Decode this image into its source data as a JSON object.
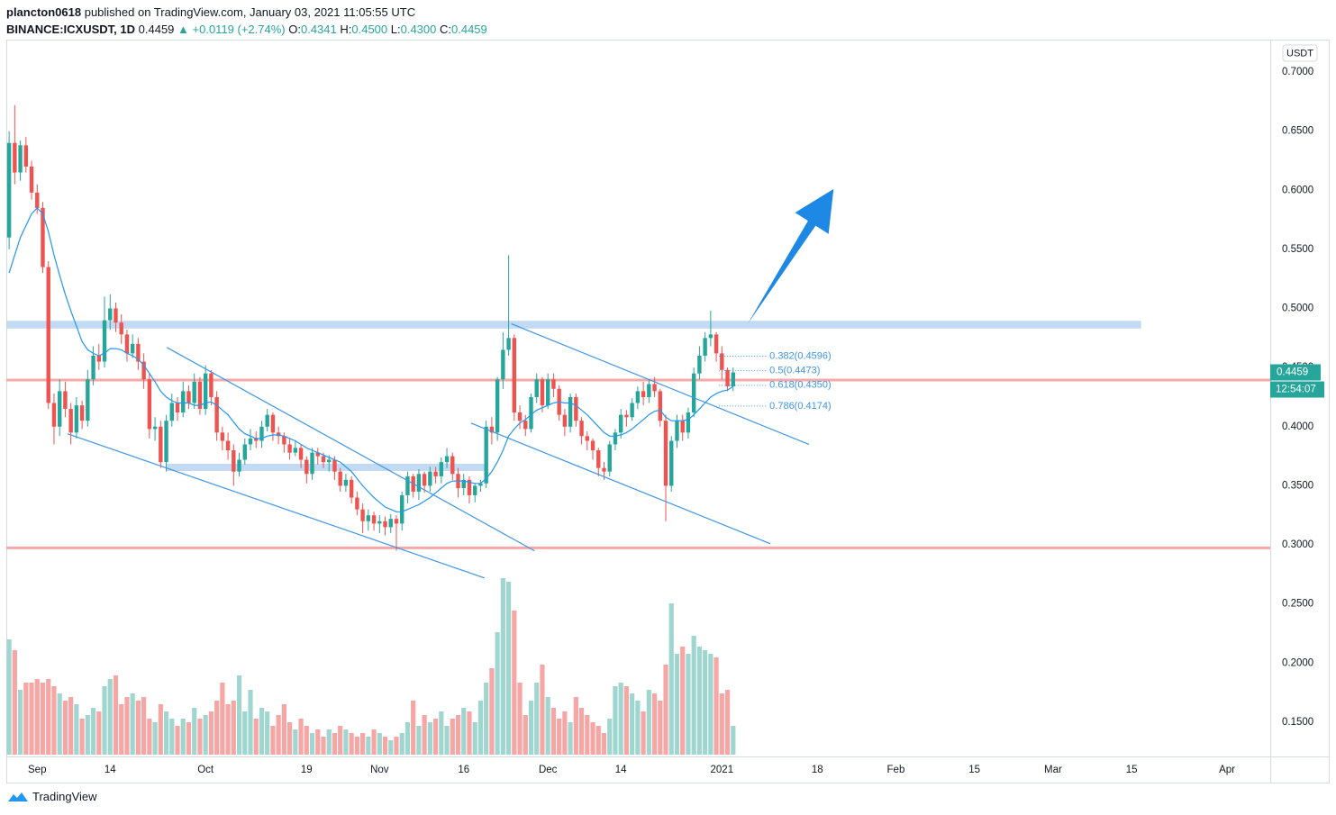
{
  "header": {
    "author": "plancton0618",
    "published": "published on TradingView.com, January 03, 2021 11:05:55 UTC",
    "symbol": "BINANCE:ICXUSDT, 1D",
    "last": "0.4459",
    "change": "▲ +0.0119 (+2.74%)",
    "ohlc": [
      {
        "key": "O:",
        "value": "0.4341"
      },
      {
        "key": "H:",
        "value": "0.4500"
      },
      {
        "key": "L:",
        "value": "0.4300"
      },
      {
        "key": "C:",
        "value": "0.4459"
      }
    ]
  },
  "footer": {
    "brand": "TradingView"
  },
  "chart_data": {
    "type": "candlestick",
    "up_color": "#26a69a",
    "down_color": "#ef5350",
    "up_volume_color": "#9fd6d0",
    "down_volume_color": "#f6a6a4",
    "grid": false,
    "currency": "USDT",
    "last_price": {
      "value": 0.4459,
      "label": "0.4459"
    },
    "countdown": "12:54:07",
    "xlim": [
      -0.5,
      224.7
    ],
    "ylim": [
      0.121,
      0.7274
    ],
    "xticks": [
      {
        "value": 5,
        "label": "Sep"
      },
      {
        "value": 18,
        "label": "14"
      },
      {
        "value": 35,
        "label": "Oct"
      },
      {
        "value": 53,
        "label": "19"
      },
      {
        "value": 66,
        "label": "Nov"
      },
      {
        "value": 81,
        "label": "16"
      },
      {
        "value": 96,
        "label": "Dec"
      },
      {
        "value": 109,
        "label": "14"
      },
      {
        "value": 127,
        "label": "2021"
      },
      {
        "value": 144,
        "label": "18"
      },
      {
        "value": 158,
        "label": "Feb"
      },
      {
        "value": 172,
        "label": "15"
      },
      {
        "value": 186,
        "label": "Mar"
      },
      {
        "value": 200,
        "label": "15"
      },
      {
        "value": 217,
        "label": "Apr"
      }
    ],
    "yticks": [
      {
        "value": 0.7,
        "label": "0.7000"
      },
      {
        "value": 0.65,
        "label": "0.6500"
      },
      {
        "value": 0.6,
        "label": "0.6000"
      },
      {
        "value": 0.55,
        "label": "0.5500"
      },
      {
        "value": 0.5,
        "label": "0.5000"
      },
      {
        "value": 0.45,
        "label": "0.4500"
      },
      {
        "value": 0.4,
        "label": "0.4000"
      },
      {
        "value": 0.35,
        "label": "0.3500"
      },
      {
        "value": 0.3,
        "label": "0.3000"
      },
      {
        "value": 0.25,
        "label": "0.2500"
      },
      {
        "value": 0.2,
        "label": "0.2000"
      },
      {
        "value": 0.15,
        "label": "0.1500"
      }
    ],
    "open": [
      0.56,
      0.64,
      0.615,
      0.638,
      0.62,
      0.598,
      0.585,
      0.535,
      0.42,
      0.4,
      0.43,
      0.415,
      0.395,
      0.418,
      0.405,
      0.44,
      0.46,
      0.455,
      0.49,
      0.5,
      0.488,
      0.478,
      0.462,
      0.47,
      0.455,
      0.44,
      0.398,
      0.4,
      0.37,
      0.405,
      0.42,
      0.412,
      0.43,
      0.42,
      0.438,
      0.415,
      0.445,
      0.425,
      0.395,
      0.388,
      0.38,
      0.362,
      0.372,
      0.385,
      0.39,
      0.388,
      0.4,
      0.41,
      0.395,
      0.392,
      0.385,
      0.378,
      0.382,
      0.372,
      0.36,
      0.378,
      0.375,
      0.37,
      0.372,
      0.362,
      0.35,
      0.355,
      0.34,
      0.33,
      0.32,
      0.325,
      0.318,
      0.32,
      0.315,
      0.322,
      0.318,
      0.342,
      0.358,
      0.345,
      0.36,
      0.35,
      0.362,
      0.358,
      0.37,
      0.375,
      0.36,
      0.348,
      0.355,
      0.342,
      0.35,
      0.352,
      0.4,
      0.395,
      0.44,
      0.465,
      0.475,
      0.412,
      0.405,
      0.398,
      0.425,
      0.44,
      0.418,
      0.44,
      0.432,
      0.41,
      0.4,
      0.425,
      0.405,
      0.392,
      0.388,
      0.38,
      0.365,
      0.362,
      0.385,
      0.395,
      0.41,
      0.408,
      0.42,
      0.43,
      0.425,
      0.436,
      0.43,
      0.405,
      0.35,
      0.388,
      0.405,
      0.395,
      0.412,
      0.445,
      0.46,
      0.475,
      0.478,
      0.462,
      0.448,
      0.4341
    ],
    "high": [
      0.65,
      0.672,
      0.642,
      0.645,
      0.625,
      0.605,
      0.59,
      0.54,
      0.428,
      0.44,
      0.438,
      0.42,
      0.425,
      0.422,
      0.448,
      0.468,
      0.47,
      0.51,
      0.512,
      0.505,
      0.495,
      0.482,
      0.478,
      0.475,
      0.462,
      0.445,
      0.408,
      0.405,
      0.41,
      0.428,
      0.425,
      0.438,
      0.435,
      0.445,
      0.442,
      0.452,
      0.448,
      0.43,
      0.4,
      0.395,
      0.385,
      0.378,
      0.39,
      0.398,
      0.396,
      0.405,
      0.415,
      0.412,
      0.4,
      0.395,
      0.39,
      0.388,
      0.385,
      0.375,
      0.382,
      0.382,
      0.378,
      0.376,
      0.375,
      0.365,
      0.36,
      0.358,
      0.345,
      0.335,
      0.33,
      0.328,
      0.325,
      0.324,
      0.326,
      0.325,
      0.345,
      0.362,
      0.36,
      0.364,
      0.362,
      0.366,
      0.366,
      0.374,
      0.382,
      0.378,
      0.365,
      0.36,
      0.358,
      0.352,
      0.355,
      0.405,
      0.408,
      0.442,
      0.48,
      0.545,
      0.478,
      0.418,
      0.41,
      0.428,
      0.445,
      0.442,
      0.445,
      0.445,
      0.435,
      0.415,
      0.428,
      0.428,
      0.408,
      0.396,
      0.39,
      0.382,
      0.37,
      0.388,
      0.398,
      0.415,
      0.414,
      0.424,
      0.434,
      0.438,
      0.44,
      0.442,
      0.432,
      0.41,
      0.392,
      0.41,
      0.41,
      0.416,
      0.45,
      0.468,
      0.48,
      0.498,
      0.48,
      0.468,
      0.45,
      0.45
    ],
    "low": [
      0.55,
      0.605,
      0.608,
      0.615,
      0.592,
      0.58,
      0.53,
      0.415,
      0.385,
      0.392,
      0.408,
      0.385,
      0.39,
      0.398,
      0.4,
      0.435,
      0.448,
      0.45,
      0.482,
      0.48,
      0.47,
      0.455,
      0.458,
      0.448,
      0.432,
      0.39,
      0.388,
      0.365,
      0.362,
      0.4,
      0.405,
      0.408,
      0.415,
      0.415,
      0.41,
      0.41,
      0.418,
      0.388,
      0.38,
      0.372,
      0.35,
      0.358,
      0.368,
      0.38,
      0.382,
      0.382,
      0.396,
      0.388,
      0.385,
      0.378,
      0.372,
      0.375,
      0.365,
      0.352,
      0.355,
      0.368,
      0.365,
      0.362,
      0.355,
      0.345,
      0.345,
      0.335,
      0.325,
      0.31,
      0.312,
      0.312,
      0.31,
      0.308,
      0.31,
      0.295,
      0.312,
      0.335,
      0.34,
      0.338,
      0.344,
      0.345,
      0.352,
      0.352,
      0.365,
      0.355,
      0.34,
      0.342,
      0.335,
      0.336,
      0.345,
      0.348,
      0.385,
      0.388,
      0.432,
      0.46,
      0.405,
      0.398,
      0.392,
      0.395,
      0.42,
      0.412,
      0.415,
      0.425,
      0.405,
      0.392,
      0.395,
      0.4,
      0.385,
      0.38,
      0.372,
      0.358,
      0.355,
      0.358,
      0.38,
      0.39,
      0.4,
      0.405,
      0.415,
      0.418,
      0.42,
      0.425,
      0.4,
      0.32,
      0.345,
      0.382,
      0.388,
      0.39,
      0.408,
      0.44,
      0.455,
      0.468,
      0.455,
      0.44,
      0.43,
      0.43
    ],
    "close": [
      0.64,
      0.615,
      0.638,
      0.62,
      0.598,
      0.585,
      0.535,
      0.42,
      0.4,
      0.43,
      0.415,
      0.395,
      0.418,
      0.405,
      0.44,
      0.46,
      0.455,
      0.49,
      0.5,
      0.488,
      0.478,
      0.462,
      0.47,
      0.455,
      0.44,
      0.398,
      0.4,
      0.37,
      0.405,
      0.42,
      0.412,
      0.43,
      0.42,
      0.438,
      0.415,
      0.445,
      0.425,
      0.395,
      0.388,
      0.38,
      0.362,
      0.372,
      0.385,
      0.39,
      0.388,
      0.4,
      0.41,
      0.395,
      0.392,
      0.385,
      0.378,
      0.382,
      0.372,
      0.36,
      0.378,
      0.375,
      0.37,
      0.372,
      0.362,
      0.35,
      0.355,
      0.34,
      0.33,
      0.32,
      0.325,
      0.318,
      0.32,
      0.315,
      0.322,
      0.318,
      0.342,
      0.358,
      0.345,
      0.36,
      0.35,
      0.362,
      0.358,
      0.37,
      0.375,
      0.36,
      0.348,
      0.355,
      0.342,
      0.35,
      0.352,
      0.4,
      0.395,
      0.44,
      0.465,
      0.475,
      0.412,
      0.405,
      0.398,
      0.425,
      0.44,
      0.418,
      0.44,
      0.432,
      0.41,
      0.4,
      0.425,
      0.405,
      0.392,
      0.388,
      0.38,
      0.365,
      0.362,
      0.385,
      0.395,
      0.41,
      0.408,
      0.42,
      0.43,
      0.425,
      0.436,
      0.43,
      0.405,
      0.35,
      0.388,
      0.405,
      0.395,
      0.412,
      0.445,
      0.46,
      0.475,
      0.478,
      0.462,
      0.448,
      0.4341,
      0.4459
    ],
    "volume": [
      64,
      58,
      36,
      40,
      40,
      42,
      40,
      42,
      38,
      34,
      30,
      32,
      28,
      20,
      22,
      26,
      24,
      38,
      42,
      44,
      28,
      32,
      34,
      30,
      32,
      20,
      18,
      28,
      24,
      20,
      16,
      20,
      18,
      26,
      20,
      22,
      24,
      30,
      40,
      28,
      30,
      44,
      24,
      36,
      20,
      26,
      24,
      16,
      22,
      28,
      18,
      14,
      20,
      16,
      12,
      14,
      10,
      14,
      12,
      16,
      14,
      12,
      10,
      12,
      10,
      14,
      12,
      10,
      8,
      10,
      12,
      18,
      30,
      16,
      22,
      18,
      20,
      24,
      16,
      20,
      22,
      26,
      24,
      18,
      30,
      40,
      48,
      68,
      98,
      96,
      80,
      40,
      22,
      30,
      40,
      50,
      32,
      26,
      20,
      24,
      18,
      32,
      26,
      22,
      18,
      16,
      12,
      20,
      38,
      40,
      38,
      34,
      30,
      24,
      36,
      34,
      30,
      50,
      84,
      56,
      60,
      56,
      66,
      60,
      58,
      56,
      54,
      34,
      36,
      16
    ],
    "ma": {
      "color": "#2196f3",
      "values": [
        0.53,
        0.545,
        0.56,
        0.57,
        0.58,
        0.585,
        0.58,
        0.565,
        0.545,
        0.528,
        0.512,
        0.498,
        0.485,
        0.472,
        0.465,
        0.462,
        0.46,
        0.462,
        0.466,
        0.466,
        0.465,
        0.462,
        0.46,
        0.457,
        0.452,
        0.445,
        0.438,
        0.43,
        0.425,
        0.422,
        0.42,
        0.42,
        0.42,
        0.418,
        0.418,
        0.42,
        0.421,
        0.418,
        0.414,
        0.41,
        0.404,
        0.398,
        0.394,
        0.392,
        0.39,
        0.39,
        0.392,
        0.393,
        0.393,
        0.392,
        0.39,
        0.388,
        0.385,
        0.382,
        0.38,
        0.378,
        0.376,
        0.374,
        0.372,
        0.37,
        0.366,
        0.362,
        0.356,
        0.35,
        0.345,
        0.34,
        0.336,
        0.332,
        0.33,
        0.328,
        0.328,
        0.33,
        0.332,
        0.334,
        0.337,
        0.34,
        0.344,
        0.348,
        0.352,
        0.354,
        0.354,
        0.354,
        0.353,
        0.352,
        0.352,
        0.356,
        0.362,
        0.37,
        0.38,
        0.392,
        0.398,
        0.403,
        0.406,
        0.41,
        0.414,
        0.416,
        0.418,
        0.42,
        0.421,
        0.42,
        0.42,
        0.418,
        0.414,
        0.41,
        0.405,
        0.4,
        0.395,
        0.392,
        0.392,
        0.393,
        0.395,
        0.398,
        0.402,
        0.406,
        0.41,
        0.413,
        0.414,
        0.408,
        0.405,
        0.405,
        0.405,
        0.406,
        0.41,
        0.415,
        0.42,
        0.425,
        0.428,
        0.43,
        0.431,
        0.434
      ]
    },
    "zones": [
      {
        "x": [
          -0.5,
          201.7
        ],
        "y": [
          0.483,
          0.4895
        ],
        "color": "#b7d3f2"
      },
      {
        "x": [
          28.1,
          85
        ],
        "y": [
          0.3625,
          0.3686
        ],
        "color": "#b7d3f2"
      }
    ],
    "levels": [
      {
        "y": 0.4394,
        "color": "#f7a8a8"
      },
      {
        "y": 0.2975,
        "color": "#f7a8a8"
      }
    ],
    "trendlines": [
      {
        "points": [
          [
            10.4,
            0.394
          ],
          [
            84.7,
            0.272
          ]
        ],
        "color": "#3d95e6"
      },
      {
        "points": [
          [
            28.1,
            0.467
          ],
          [
            93.6,
            0.295
          ]
        ],
        "color": "#3d95e6"
      },
      {
        "points": [
          [
            89.5,
            0.487
          ],
          [
            142.5,
            0.385
          ]
        ],
        "color": "#3d95e6"
      },
      {
        "points": [
          [
            82.3,
            0.403
          ],
          [
            135.6,
            0.301
          ]
        ],
        "color": "#3d95e6"
      }
    ],
    "arrow": {
      "points": [
        [
          131.6,
          0.487
        ],
        [
          146.9,
          0.601
        ]
      ],
      "color": "#1e88e5"
    },
    "fib": {
      "x": [
        126.5,
        135
      ],
      "color": "#3d95e6",
      "levels": [
        {
          "value": 0.4596,
          "label": "0.382(0.4596)"
        },
        {
          "value": 0.4473,
          "label": "0.5(0.4473)"
        },
        {
          "value": 0.435,
          "label": "0.618(0.4350)"
        },
        {
          "value": 0.4174,
          "label": "0.786(0.4174)"
        }
      ]
    }
  }
}
